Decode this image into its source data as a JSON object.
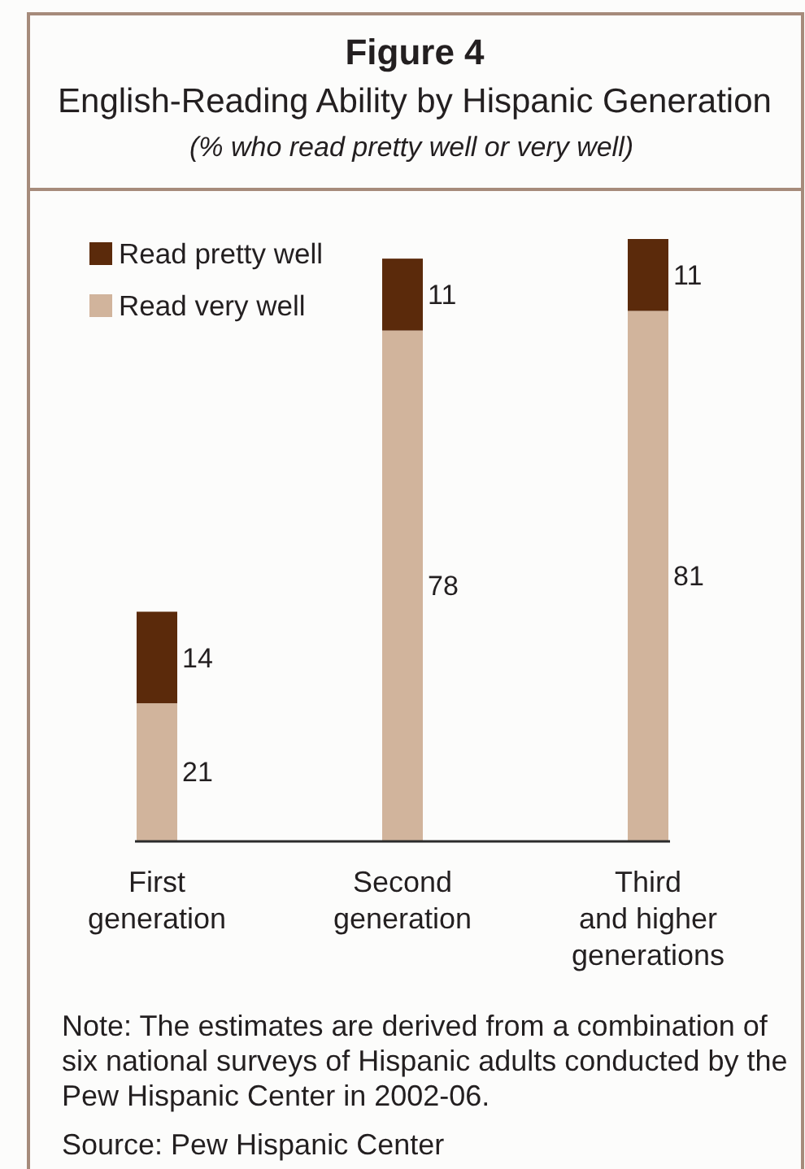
{
  "chart_data": {
    "type": "bar",
    "title": "Figure 4",
    "subtitle": "English-Reading Ability by Hispanic Generation",
    "ylabel": "(% who read pretty well or very well)",
    "categories": [
      "First\ngeneration",
      "Second\ngeneration",
      "Third\nand higher\ngenerations"
    ],
    "series": [
      {
        "name": "Read very well",
        "color": "#d1b49c",
        "values": [
          21,
          78,
          81
        ]
      },
      {
        "name": "Read pretty well",
        "color": "#5b2a0b",
        "values": [
          14,
          11,
          11
        ]
      }
    ],
    "stacked": true,
    "data_labels": true,
    "legend": "top left",
    "annotations": [
      "Note: The estimates are derived from a combination of six national surveys of Hispanic adults conducted by the Pew Hispanic Center in 2002-06.",
      "Source: Pew Hispanic Center"
    ]
  }
}
